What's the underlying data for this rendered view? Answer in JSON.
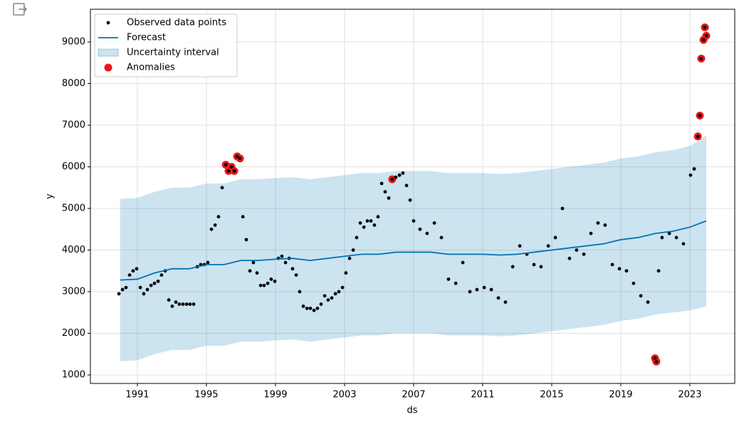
{
  "chart_data": {
    "type": "forecast",
    "xlabel": "ds",
    "ylabel": "y",
    "xlim": [
      1988.28,
      2025.6
    ],
    "ylim": [
      795,
      9786
    ],
    "xticks": [
      1991,
      1995,
      1999,
      2003,
      2007,
      2011,
      2015,
      2019,
      2023
    ],
    "yticks": [
      1000,
      2000,
      3000,
      4000,
      5000,
      6000,
      7000,
      8000,
      9000
    ],
    "grid": true,
    "legend_loc": "upper left",
    "series": [
      {
        "name": "Observed data points",
        "color": "#000000",
        "x": [
          1989.93,
          1990.14,
          1990.34,
          1990.55,
          1990.75,
          1990.96,
          1991.17,
          1991.37,
          1991.58,
          1991.79,
          1991.99,
          1992.2,
          1992.4,
          1992.61,
          1992.82,
          1993.02,
          1993.23,
          1993.43,
          1993.64,
          1993.85,
          1994.05,
          1994.26,
          1994.47,
          1994.67,
          1994.88,
          1995.08,
          1995.29,
          1995.5,
          1995.7,
          1995.91,
          1996.12,
          1996.28,
          1996.45,
          1996.61,
          1996.78,
          1996.94,
          1997.11,
          1997.31,
          1997.52,
          1997.72,
          1997.93,
          1998.14,
          1998.34,
          1998.55,
          1998.75,
          1998.96,
          1999.17,
          1999.37,
          1999.58,
          1999.79,
          1999.99,
          2000.2,
          2000.4,
          2000.61,
          2000.82,
          2001.02,
          2001.23,
          2001.43,
          2001.64,
          2001.85,
          2002.05,
          2002.26,
          2002.47,
          2002.67,
          2002.88,
          2003.08,
          2003.29,
          2003.5,
          2003.7,
          2003.91,
          2004.12,
          2004.32,
          2004.53,
          2004.73,
          2004.94,
          2005.15,
          2005.35,
          2005.56,
          2005.76,
          2005.97,
          2006.18,
          2006.38,
          2006.59,
          2006.8,
          2007.0,
          2007.37,
          2007.78,
          2008.2,
          2008.61,
          2009.02,
          2009.44,
          2009.85,
          2010.26,
          2010.67,
          2011.09,
          2011.5,
          2011.91,
          2012.32,
          2012.74,
          2013.15,
          2013.56,
          2013.97,
          2014.38,
          2014.8,
          2015.21,
          2015.62,
          2016.03,
          2016.44,
          2016.86,
          2017.27,
          2017.68,
          2018.09,
          2018.51,
          2018.92,
          2019.33,
          2019.74,
          2020.16,
          2020.57,
          2020.98,
          2021.06,
          2021.19,
          2021.39,
          2021.81,
          2022.22,
          2022.63,
          2023.04,
          2023.25,
          2023.46,
          2023.58,
          2023.66,
          2023.79,
          2023.87,
          2023.95
        ],
        "values": [
          2950,
          3050,
          3100,
          3400,
          3500,
          3550,
          3100,
          2950,
          3050,
          3150,
          3200,
          3250,
          3400,
          3500,
          2800,
          2650,
          2750,
          2700,
          2700,
          2700,
          2700,
          2700,
          3600,
          3650,
          3650,
          3700,
          4500,
          4600,
          4800,
          5500,
          6050,
          5900,
          6000,
          5900,
          6250,
          6200,
          4800,
          4250,
          3500,
          3700,
          3450,
          3150,
          3150,
          3200,
          3300,
          3250,
          3800,
          3850,
          3700,
          3800,
          3550,
          3400,
          3000,
          2650,
          2600,
          2600,
          2550,
          2600,
          2700,
          2900,
          2800,
          2850,
          2950,
          3000,
          3100,
          3450,
          3800,
          4000,
          4300,
          4650,
          4550,
          4700,
          4700,
          4600,
          4800,
          5600,
          5400,
          5250,
          5700,
          5750,
          5800,
          5850,
          5550,
          5200,
          4700,
          4500,
          4400,
          4650,
          4300,
          3300,
          3200,
          3700,
          3000,
          3050,
          3100,
          3050,
          2850,
          2750,
          3600,
          4100,
          3900,
          3650,
          3600,
          4100,
          4300,
          5000,
          3800,
          4000,
          3900,
          4400,
          4650,
          4600,
          3650,
          3550,
          3500,
          3200,
          2900,
          2750,
          1400,
          1320,
          3500,
          4300,
          4400,
          4300,
          4150,
          5800,
          5950,
          6730,
          7230,
          8600,
          9050,
          9350,
          9150
        ]
      },
      {
        "name": "Forecast",
        "color": "#0072B2",
        "x": [
          1990,
          1991,
          1992,
          1993,
          1994,
          1995,
          1996,
          1997,
          1998,
          1999,
          2000,
          2001,
          2002,
          2003,
          2004,
          2005,
          2006,
          2007,
          2008,
          2009,
          2010,
          2011,
          2012,
          2013,
          2014,
          2015,
          2016,
          2017,
          2018,
          2019,
          2020,
          2021,
          2022,
          2023,
          2023.95
        ],
        "values": [
          3280,
          3300,
          3450,
          3550,
          3550,
          3650,
          3650,
          3750,
          3750,
          3780,
          3800,
          3750,
          3800,
          3850,
          3900,
          3900,
          3950,
          3950,
          3950,
          3900,
          3900,
          3900,
          3880,
          3900,
          3950,
          4000,
          4050,
          4100,
          4150,
          4250,
          4300,
          4400,
          4450,
          4550,
          4700
        ]
      },
      {
        "name": "Uncertainty interval",
        "color": "#0072B2",
        "x": [
          1990,
          1991,
          1992,
          1993,
          1994,
          1995,
          1996,
          1997,
          1998,
          1999,
          2000,
          2001,
          2002,
          2003,
          2004,
          2005,
          2006,
          2007,
          2008,
          2009,
          2010,
          2011,
          2012,
          2013,
          2014,
          2015,
          2016,
          2017,
          2018,
          2019,
          2020,
          2021,
          2022,
          2023,
          2023.95
        ],
        "lower": [
          1330,
          1350,
          1500,
          1600,
          1600,
          1700,
          1700,
          1800,
          1800,
          1830,
          1850,
          1800,
          1850,
          1900,
          1950,
          1950,
          2000,
          2000,
          2000,
          1950,
          1950,
          1950,
          1930,
          1950,
          2000,
          2050,
          2100,
          2150,
          2200,
          2300,
          2350,
          2450,
          2500,
          2550,
          2650
        ],
        "upper": [
          5230,
          5250,
          5400,
          5500,
          5500,
          5600,
          5600,
          5700,
          5700,
          5730,
          5750,
          5700,
          5750,
          5800,
          5850,
          5850,
          5900,
          5900,
          5900,
          5850,
          5850,
          5850,
          5830,
          5850,
          5900,
          5950,
          6000,
          6050,
          6100,
          6200,
          6250,
          6350,
          6400,
          6500,
          6750
        ]
      },
      {
        "name": "Anomalies",
        "color": "#e8161b",
        "x": [
          1996.12,
          1996.28,
          1996.45,
          1996.61,
          1996.78,
          1996.94,
          2005.76,
          2020.98,
          2021.06,
          2023.46,
          2023.58,
          2023.66,
          2023.79,
          2023.87,
          2023.95
        ],
        "values": [
          6050,
          5900,
          6000,
          5900,
          6250,
          6200,
          5700,
          1400,
          1320,
          6730,
          7230,
          8600,
          9050,
          9350,
          9150
        ]
      }
    ]
  }
}
